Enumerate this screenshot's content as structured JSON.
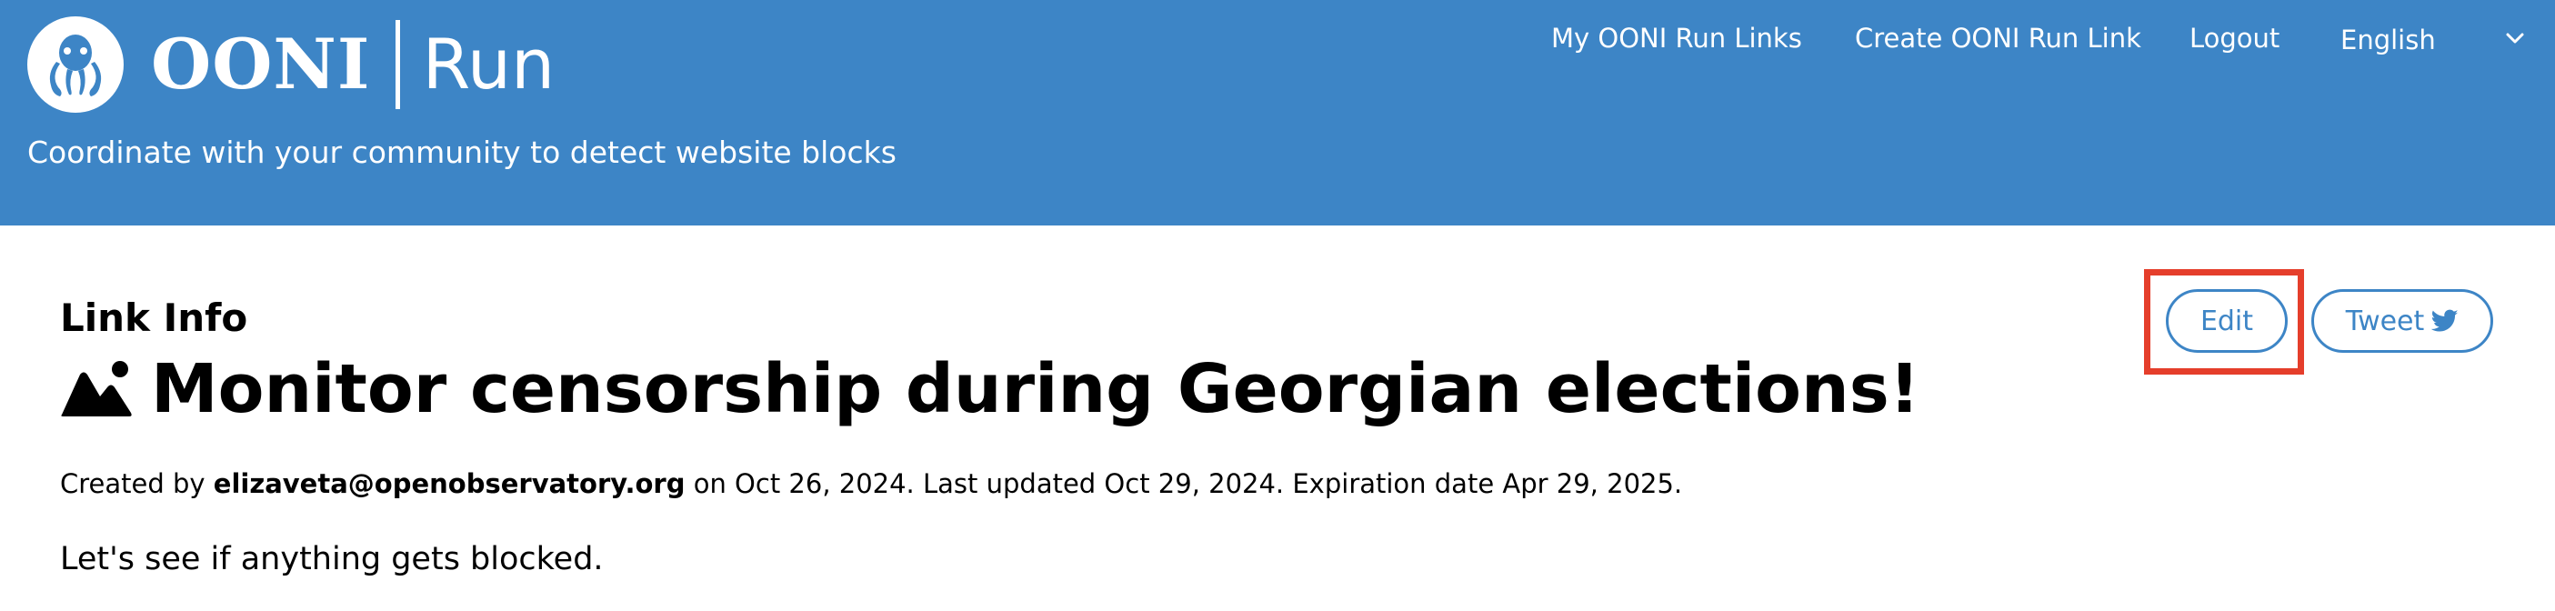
{
  "header": {
    "brand": "OONI",
    "product": "Run",
    "tagline": "Coordinate with your community to detect website blocks",
    "nav": {
      "my_links": "My OONI Run Links",
      "create_link": "Create OONI Run Link",
      "logout": "Logout",
      "language": "English"
    }
  },
  "main": {
    "section_title": "Link Info",
    "link_title": "Monitor censorship during Georgian elections!",
    "meta": {
      "created_by_prefix": "Created by ",
      "author": "elizaveta@openobservatory.org",
      "suffix": " on Oct 26, 2024. Last updated Oct 29, 2024. Expiration date Apr 29, 2025."
    },
    "description": "Let's see if anything gets blocked.",
    "buttons": {
      "edit": "Edit",
      "tweet": "Tweet"
    }
  },
  "colors": {
    "header_bg": "#3d85c6",
    "accent": "#3d85c6",
    "highlight": "#e53e2b"
  }
}
